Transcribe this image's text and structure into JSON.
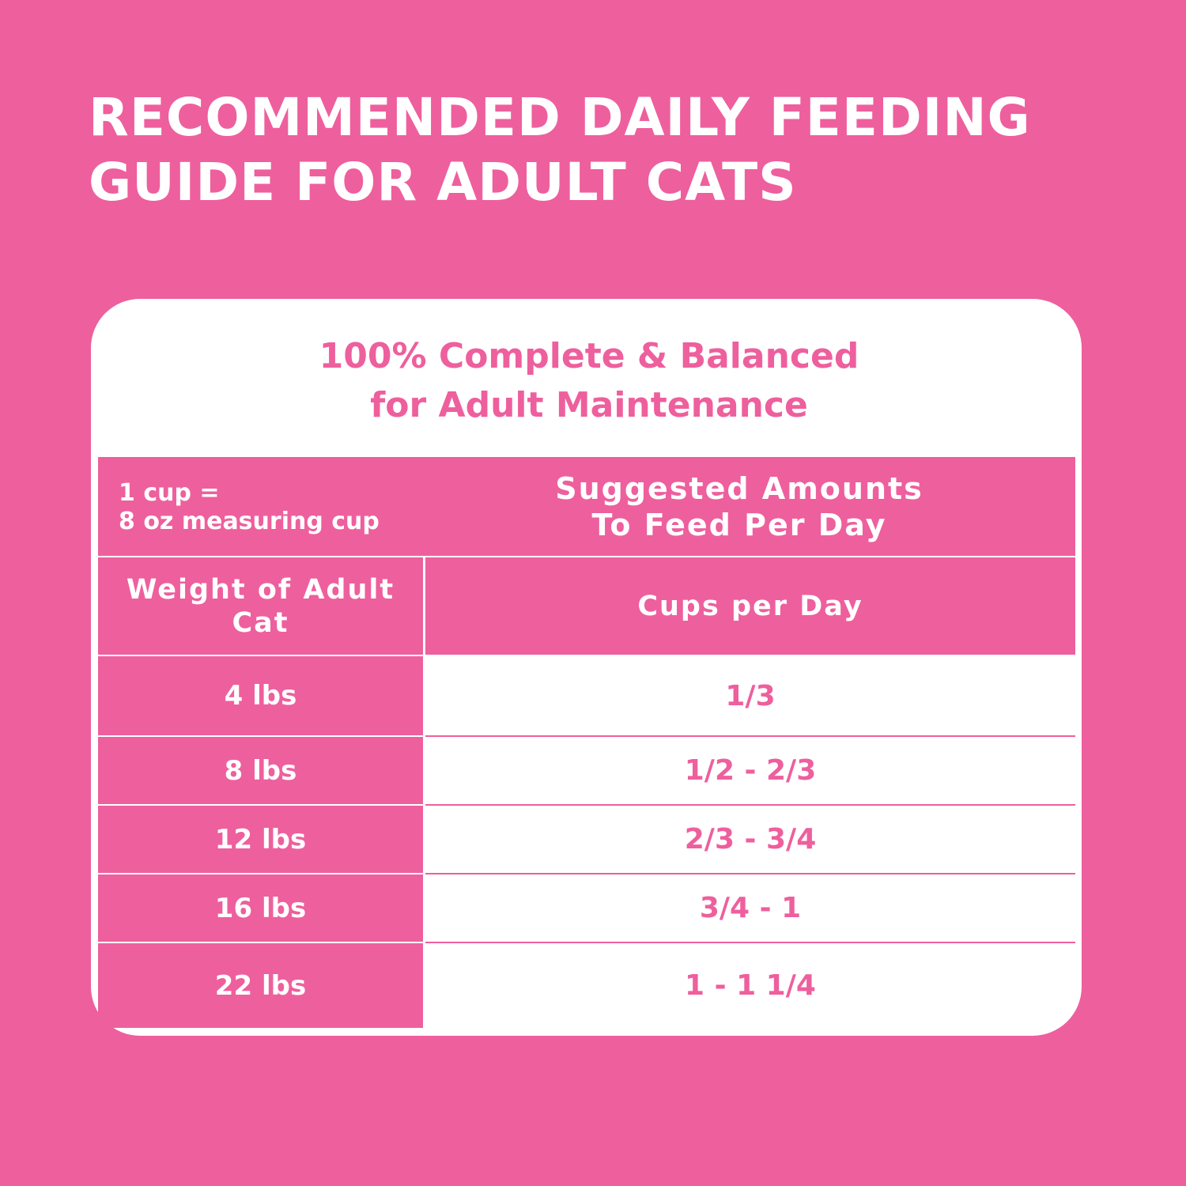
{
  "header": {
    "title": [
      "RECOMMENDED DAILY FEEDING",
      "GUIDE FOR ADULT CATS"
    ]
  },
  "card": {
    "subtitle": [
      "100% Complete & Balanced",
      "for Adult Maintenance"
    ]
  },
  "table": {
    "note": [
      "1 cup =",
      "8 oz measuring cup"
    ],
    "heading": [
      "Suggested Amounts",
      "To Feed Per Day"
    ],
    "columns": [
      "Weight of Adult Cat",
      "Cups per Day"
    ],
    "rows": [
      [
        "4 lbs",
        "1/3"
      ],
      [
        "8 lbs",
        "1/2 - 2/3"
      ],
      [
        "12 lbs",
        "2/3 - 3/4"
      ],
      [
        "16 lbs",
        "3/4 - 1"
      ],
      [
        "22 lbs",
        "1 - 1 1/4"
      ]
    ]
  }
}
